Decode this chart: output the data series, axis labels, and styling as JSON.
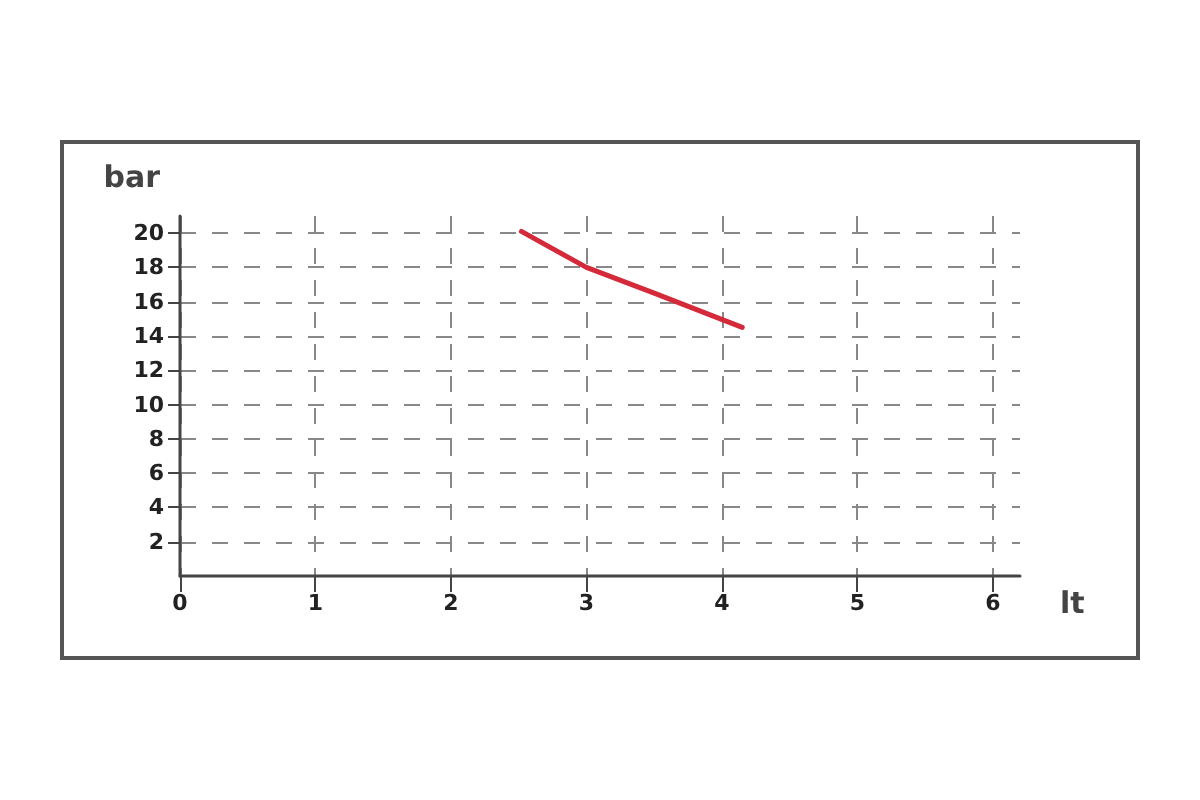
{
  "chart_data": {
    "type": "line",
    "ylabel": "bar",
    "xlabel": "lt",
    "series": [
      {
        "color": "#d42a3a",
        "x": [
          2.52,
          3,
          3.5,
          4.15
        ],
        "values": [
          20.1,
          18,
          16.5,
          14.5
        ]
      }
    ],
    "xlim": [
      0,
      6.2
    ],
    "xticks": [
      0,
      1,
      2,
      3,
      4,
      5,
      6
    ],
    "ylim": [
      0,
      21
    ],
    "yticks": [
      2,
      4,
      6,
      8,
      10,
      12,
      14,
      16,
      18,
      20
    ],
    "grid": true,
    "marker": "none",
    "line_style": "solid"
  }
}
